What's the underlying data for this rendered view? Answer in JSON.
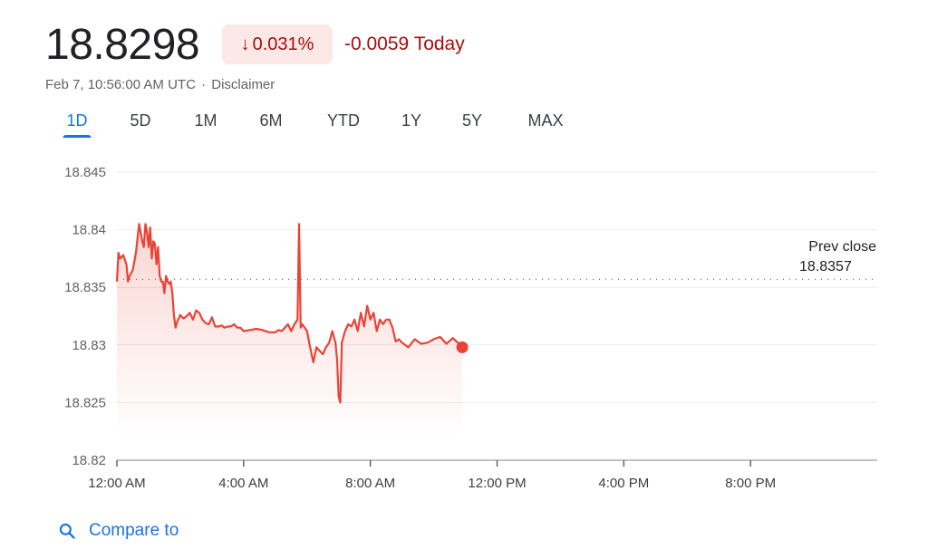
{
  "quote": {
    "price": "18.8298",
    "change_percent": "0.031%",
    "change_abs": "-0.0059",
    "change_period": "Today",
    "timestamp": "Feb 7, 10:56:00 AM UTC",
    "separator": "·",
    "disclaimer": "Disclaimer",
    "direction_icon": "arrow-down-icon",
    "negative_color": "#a50e0e",
    "negative_bg": "#fce8e6"
  },
  "tabs": [
    {
      "label": "1D",
      "active": true
    },
    {
      "label": "5D"
    },
    {
      "label": "1M"
    },
    {
      "label": "6M"
    },
    {
      "label": "YTD"
    },
    {
      "label": "1Y"
    },
    {
      "label": "5Y"
    },
    {
      "label": "MAX"
    }
  ],
  "compare": {
    "label": "Compare to",
    "icon": "search-icon"
  },
  "chart_data": {
    "type": "line",
    "line_color": "#ea4335",
    "accent_color": "#1a73e8",
    "ylim": [
      18.82,
      18.845
    ],
    "yticks": [
      "18.845",
      "18.84",
      "18.835",
      "18.83",
      "18.825",
      "18.82"
    ],
    "ytick_values": [
      18.845,
      18.84,
      18.835,
      18.83,
      18.825,
      18.82
    ],
    "xlim": [
      0,
      24
    ],
    "xticks": [
      "12:00 AM",
      "4:00 AM",
      "8:00 AM",
      "12:00 PM",
      "4:00 PM",
      "8:00 PM"
    ],
    "xtick_values": [
      0,
      4,
      8,
      12,
      16,
      20
    ],
    "grid": true,
    "prev_close": {
      "label": "Prev close",
      "value": "18.8357",
      "level": 18.8357
    },
    "series": [
      {
        "x": [
          0,
          0.05,
          0.1,
          0.2,
          0.3,
          0.35,
          0.4,
          0.5,
          0.6,
          0.7,
          0.8,
          0.85,
          0.9,
          0.95,
          1.0,
          1.05,
          1.1,
          1.15,
          1.2,
          1.25,
          1.3,
          1.35,
          1.4,
          1.45,
          1.5,
          1.55,
          1.6,
          1.65,
          1.7,
          1.75,
          1.8,
          1.85,
          1.9,
          2.0,
          2.1,
          2.2,
          2.3,
          2.4,
          2.5,
          2.6,
          2.7,
          2.8,
          2.9,
          3.0,
          3.1,
          3.2,
          3.3,
          3.4,
          3.5,
          3.6,
          3.7,
          3.8,
          3.9,
          4.0,
          4.2,
          4.4,
          4.6,
          4.8,
          5.0,
          5.1,
          5.2,
          5.3,
          5.4,
          5.5,
          5.6,
          5.7,
          5.75,
          5.8,
          5.85,
          5.9,
          6.0,
          6.1,
          6.2,
          6.3,
          6.4,
          6.5,
          6.6,
          6.7,
          6.8,
          6.9,
          6.95,
          7.0,
          7.05,
          7.1,
          7.2,
          7.3,
          7.4,
          7.5,
          7.6,
          7.7,
          7.8,
          7.9,
          8.0,
          8.1,
          8.2,
          8.3,
          8.4,
          8.5,
          8.6,
          8.7,
          8.8,
          8.9,
          9.0,
          9.2,
          9.4,
          9.6,
          9.8,
          10.0,
          10.2,
          10.4,
          10.6,
          10.8,
          10.9
        ],
        "y": [
          18.8355,
          18.838,
          18.8375,
          18.8378,
          18.837,
          18.8355,
          18.836,
          18.8365,
          18.838,
          18.8405,
          18.839,
          18.8385,
          18.8405,
          18.8398,
          18.8385,
          18.8402,
          18.8375,
          18.839,
          18.8388,
          18.837,
          18.8385,
          18.836,
          18.8355,
          18.8355,
          18.8345,
          18.836,
          18.8355,
          18.8353,
          18.8355,
          18.8345,
          18.8326,
          18.8315,
          18.832,
          18.8326,
          18.8323,
          18.8325,
          18.8328,
          18.8322,
          18.833,
          18.8328,
          18.8322,
          18.8319,
          18.8318,
          18.8324,
          18.8316,
          18.8316,
          18.8317,
          18.8315,
          18.8316,
          18.8316,
          18.8318,
          18.8315,
          18.8315,
          18.8312,
          18.8313,
          18.8314,
          18.8313,
          18.8311,
          18.8311,
          18.8313,
          18.8312,
          18.8315,
          18.8318,
          18.8312,
          18.8318,
          18.8322,
          18.8405,
          18.8315,
          18.8318,
          18.8316,
          18.8312,
          18.8298,
          18.8285,
          18.8298,
          18.8295,
          18.8292,
          18.8298,
          18.8302,
          18.8312,
          18.8302,
          18.8287,
          18.8255,
          18.825,
          18.8302,
          18.8312,
          18.8318,
          18.8316,
          18.8322,
          18.8312,
          18.8328,
          18.8316,
          18.8334,
          18.8322,
          18.8328,
          18.8312,
          18.8322,
          18.8318,
          18.8322,
          18.8322,
          18.8315,
          18.8303,
          18.8305,
          18.8302,
          18.8298,
          18.8305,
          18.8301,
          18.8302,
          18.8305,
          18.8307,
          18.8301,
          18.8306,
          18.8301,
          18.8298
        ]
      }
    ],
    "last_value": 18.8298
  }
}
